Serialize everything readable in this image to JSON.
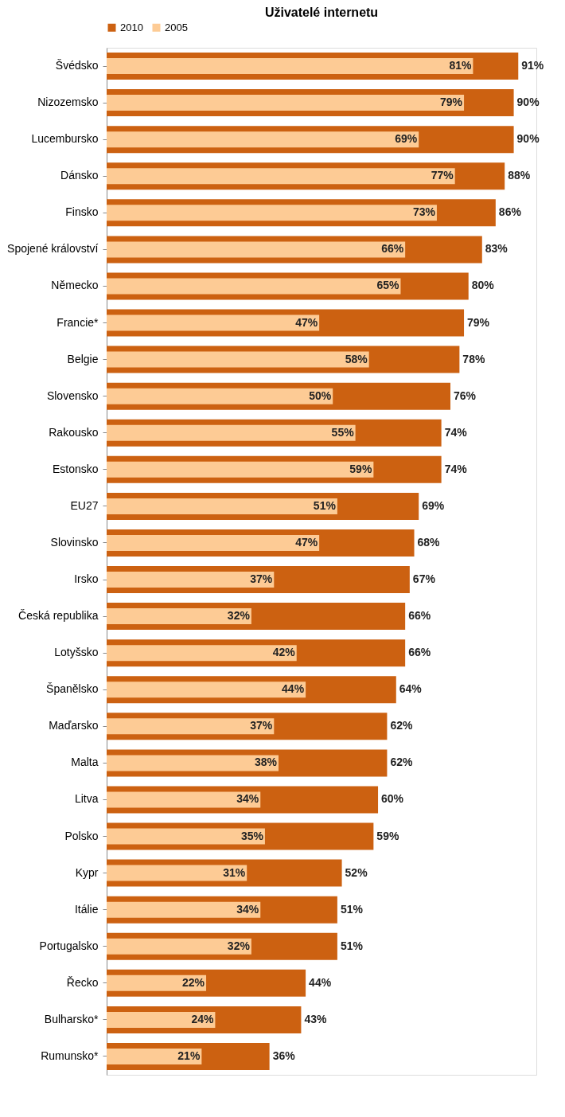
{
  "chart_data": {
    "type": "bar",
    "orientation": "horizontal",
    "title": "Uživatelé internetu",
    "categories": [
      "Švédsko",
      "Nizozemsko",
      "Lucembursko",
      "Dánsko",
      "Finsko",
      "Spojené království",
      "Německo",
      "Francie*",
      "Belgie",
      "Slovensko",
      "Rakousko",
      "Estonsko",
      "EU27",
      "Slovinsko",
      "Irsko",
      "Česká republika",
      "Lotyšsko",
      "Španělsko",
      "Maďarsko",
      "Malta",
      "Litva",
      "Polsko",
      "Kypr",
      "Itálie",
      "Portugalsko",
      "Řecko",
      "Bulharsko*",
      "Rumunsko*"
    ],
    "series": [
      {
        "name": "2010",
        "color": "#cc6111",
        "values": [
          91,
          90,
          90,
          88,
          86,
          83,
          80,
          79,
          78,
          76,
          74,
          74,
          69,
          68,
          67,
          66,
          66,
          64,
          62,
          62,
          60,
          59,
          52,
          51,
          51,
          44,
          43,
          36
        ],
        "value_labels": [
          "91%",
          "90%",
          "90%",
          "88%",
          "86%",
          "83%",
          "80%",
          "79%",
          "78%",
          "76%",
          "74%",
          "74%",
          "69%",
          "68%",
          "67%",
          "66%",
          "66%",
          "64%",
          "62%",
          "62%",
          "60%",
          "59%",
          "52%",
          "51%",
          "51%",
          "44%",
          "43%",
          "36%"
        ]
      },
      {
        "name": "2005",
        "color": "#fdcb95",
        "values": [
          81,
          79,
          69,
          77,
          73,
          66,
          65,
          47,
          58,
          50,
          55,
          59,
          51,
          47,
          37,
          32,
          42,
          44,
          37,
          38,
          34,
          35,
          31,
          34,
          32,
          22,
          24,
          21
        ],
        "value_labels": [
          "81%",
          "79%",
          "69%",
          "77%",
          "73%",
          "66%",
          "65%",
          "47%",
          "58%",
          "50%",
          "55%",
          "59%",
          "51%",
          "47%",
          "37%",
          "32%",
          "42%",
          "44%",
          "37%",
          "38%",
          "34%",
          "35%",
          "31%",
          "34%",
          "32%",
          "22%",
          "24%",
          "21%"
        ]
      }
    ],
    "xlim": [
      0,
      95
    ],
    "legend": "top",
    "tick_labels": "y"
  }
}
